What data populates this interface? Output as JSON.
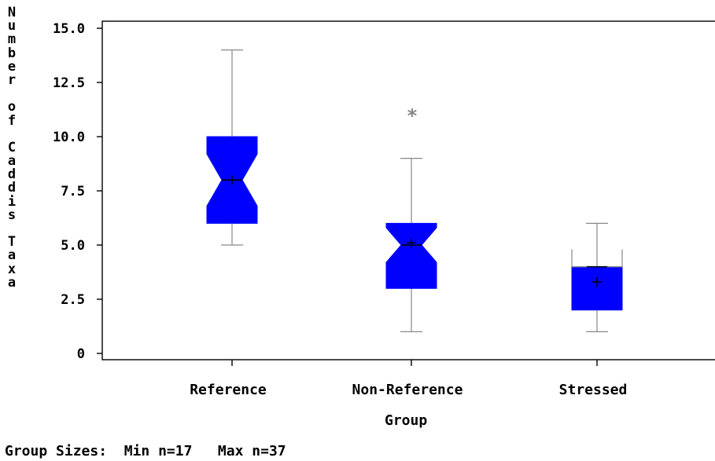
{
  "chart_data": {
    "type": "boxplot",
    "ylabel": "Number of Caddis Taxa",
    "xlabel": "Group",
    "ylim": [
      0,
      15
    ],
    "yticks": [
      {
        "value": 0,
        "label": "0"
      },
      {
        "value": 2.5,
        "label": "2.5"
      },
      {
        "value": 5,
        "label": "5.0"
      },
      {
        "value": 7.5,
        "label": "7.5"
      },
      {
        "value": 10,
        "label": "10.0"
      },
      {
        "value": 12.5,
        "label": "12.5"
      },
      {
        "value": 15,
        "label": "15.0"
      }
    ],
    "categories": [
      "Reference",
      "Non-Reference",
      "Stressed"
    ],
    "groups": [
      {
        "name": "Reference",
        "min": 5,
        "q1": 6,
        "median": 8,
        "q3": 10,
        "max": 14,
        "mean": 8,
        "notch_low": 6.8,
        "notch_high": 9.2,
        "outliers": []
      },
      {
        "name": "Non-Reference",
        "min": 1,
        "q1": 3,
        "median": 5,
        "q3": 6,
        "max": 9,
        "mean": 5.1,
        "notch_low": 4.2,
        "notch_high": 5.8,
        "outliers": [
          11
        ]
      },
      {
        "name": "Stressed",
        "min": 1,
        "q1": 2,
        "median": 4,
        "q3": 4,
        "max": 6,
        "mean": 3.3,
        "notch_low": 3.2,
        "notch_high": 4.8,
        "outliers": []
      }
    ],
    "box_color": "#0000ff",
    "whisker_color": "#888888",
    "footer": "Group Sizes:  Min n=17   Max n=37"
  }
}
